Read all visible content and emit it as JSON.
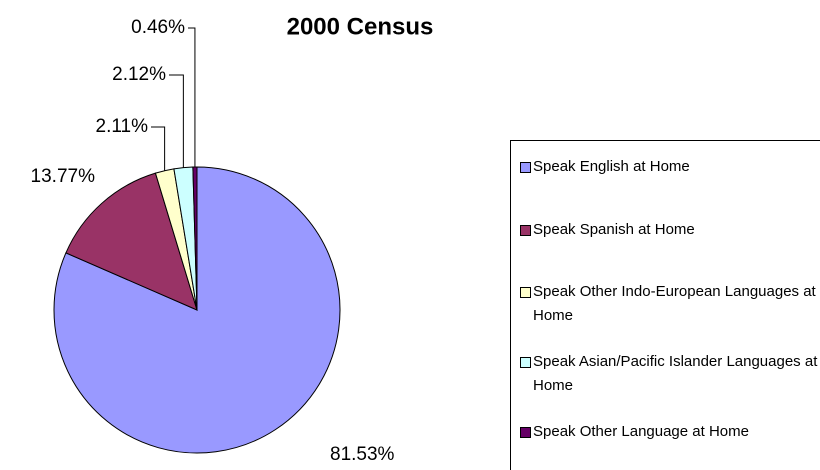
{
  "chart_data": {
    "type": "pie",
    "title": "2000 Census",
    "categories": [
      "Speak English at Home",
      "Speak Spanish at Home",
      "Speak Other Indo-European Languages at Home",
      "Speak Asian/Pacific Islander Languages at Home",
      "Speak Other Language at Home"
    ],
    "values": [
      81.53,
      13.77,
      2.11,
      2.12,
      0.46
    ],
    "value_labels": [
      "81.53%",
      "13.77%",
      "2.11%",
      "2.12%",
      "0.46%"
    ],
    "colors": [
      "#9999ff",
      "#993366",
      "#ffffcc",
      "#ccffff",
      "#660066"
    ],
    "legend": "right"
  }
}
